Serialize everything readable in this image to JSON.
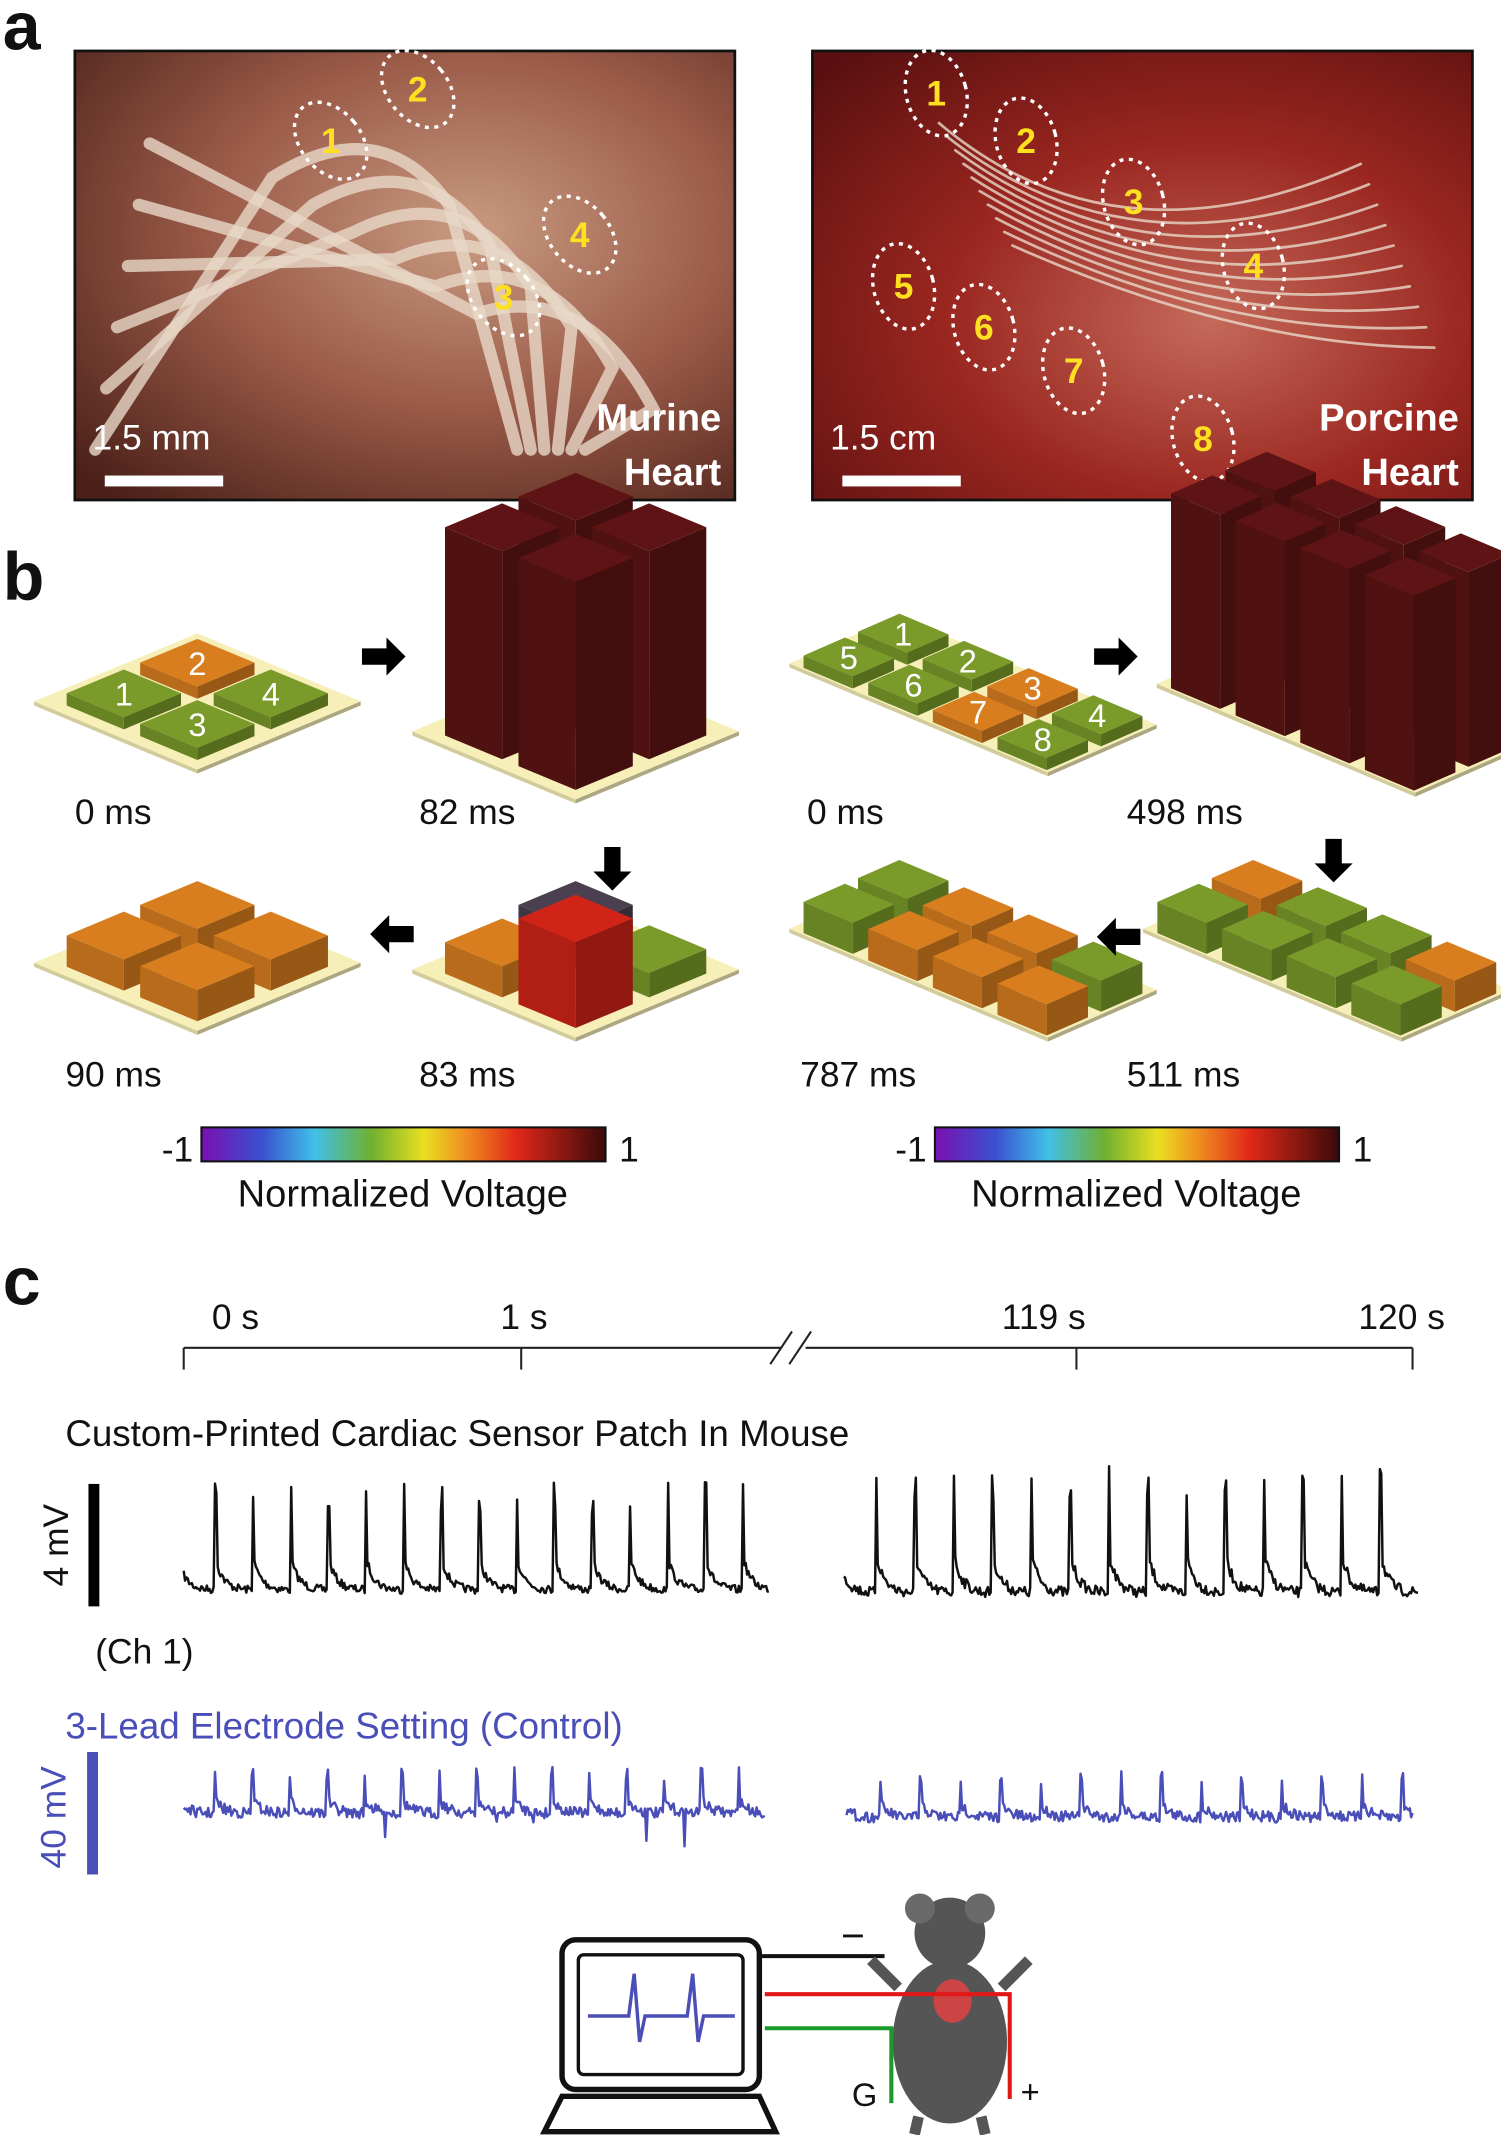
{
  "panel_a": {
    "label": "a",
    "murine": {
      "scale_bar": "1.5 mm",
      "title": [
        "Murine",
        "Heart"
      ],
      "electrodes": [
        "1",
        "2",
        "3",
        "4"
      ]
    },
    "porcine": {
      "scale_bar": "1.5 cm",
      "title": [
        "Porcine",
        "Heart"
      ],
      "electrodes": [
        "1",
        "2",
        "3",
        "4",
        "5",
        "6",
        "7",
        "8"
      ]
    }
  },
  "panel_b": {
    "label": "b",
    "murine": {
      "frames": [
        "0 ms",
        "82 ms",
        "83 ms",
        "90 ms"
      ],
      "electrodes": [
        "1",
        "2",
        "3",
        "4"
      ],
      "colorbar": {
        "min": "-1",
        "max": "1",
        "label": "Normalized Voltage"
      }
    },
    "porcine": {
      "frames": [
        "0 ms",
        "498 ms",
        "511 ms",
        "787 ms"
      ],
      "electrodes": [
        "1",
        "2",
        "3",
        "4",
        "5",
        "6",
        "7",
        "8"
      ],
      "colorbar": {
        "min": "-1",
        "max": "1",
        "label": "Normalized Voltage"
      }
    }
  },
  "panel_c": {
    "label": "c",
    "time_ticks": [
      "0 s",
      "1 s",
      "119 s",
      "120 s"
    ],
    "patch_title": "Custom-Printed Cardiac Sensor Patch In Mouse",
    "patch_scale": "4 mV",
    "channel": "(Ch 1)",
    "control_title": "3-Lead Electrode Setting (Control)",
    "control_scale": "40 mV",
    "leads": [
      "−",
      "G",
      "+"
    ]
  }
}
